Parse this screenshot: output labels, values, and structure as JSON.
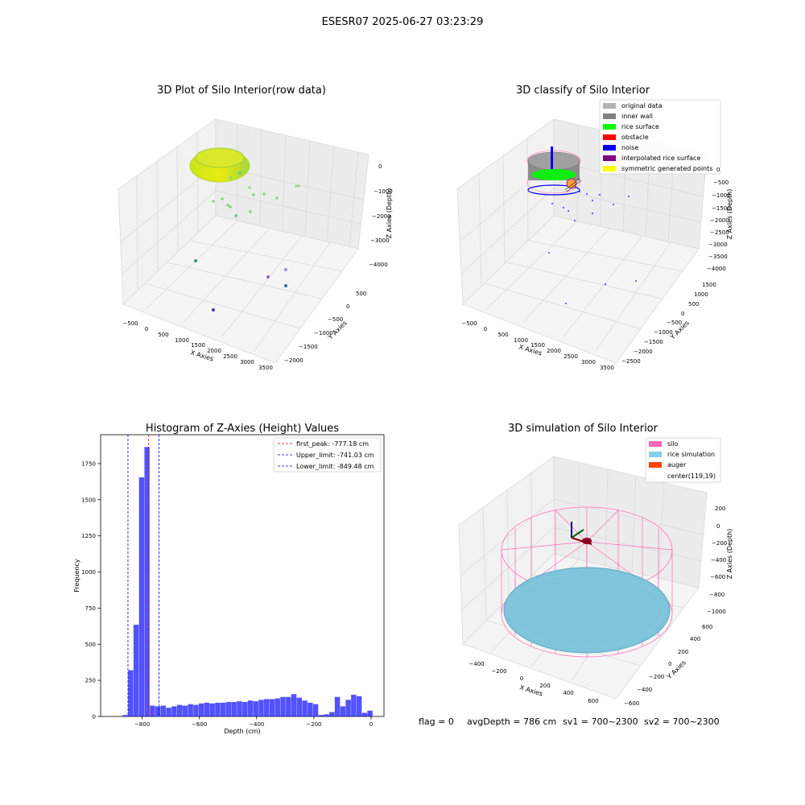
{
  "suptitle": "ESESR07 2025-06-27 03:23:29",
  "panels": {
    "raw": {
      "title": "3D Plot of Silo Interior(row data)",
      "xlabel": "X Axies",
      "ylabel": "Y Axies",
      "zlabel": "Z Axies (Depth)",
      "xticks": [
        "−500",
        "0",
        "500",
        "1000",
        "1500",
        "2000",
        "2500",
        "3000",
        "3500"
      ],
      "yticks": [
        "500",
        "0",
        "−500",
        "−1000",
        "−1500",
        "−2000"
      ],
      "zticks": [
        "0",
        "−1000",
        "−2000",
        "−3000",
        "−4000"
      ]
    },
    "classify": {
      "title": "3D classify of Silo Interior",
      "xlabel": "X Axies",
      "ylabel": "Y Axies",
      "zlabel": "Z Axies (Depth)",
      "xticks": [
        "−500",
        "0",
        "500",
        "1000",
        "1500",
        "2000",
        "2500",
        "3000",
        "3500"
      ],
      "yticks": [
        "1500",
        "1000",
        "500",
        "0",
        "−500",
        "−1000",
        "−1500",
        "−2000",
        "−2500"
      ],
      "zticks": [
        "0",
        "−500",
        "−1000",
        "−1500",
        "−2000",
        "−2500",
        "−3000",
        "−3500",
        "−4000"
      ],
      "legend": [
        {
          "label": "original data",
          "color": "#b3b3b3"
        },
        {
          "label": "inner wall",
          "color": "#808080"
        },
        {
          "label": "rice surface",
          "color": "#00ff00"
        },
        {
          "label": "obstacle",
          "color": "#ff0000"
        },
        {
          "label": "noise",
          "color": "#0000ff"
        },
        {
          "label": "interpolated rice surface",
          "color": "#800080"
        },
        {
          "label": "symmetric generated points",
          "color": "#ffff00"
        }
      ]
    },
    "simulation": {
      "title": "3D simulation of Silo Interior",
      "xlabel": "X Axies",
      "ylabel": "Y Axies",
      "zlabel": "Z Axies (Depth)",
      "xticks": [
        "−400",
        "−200",
        "0",
        "200",
        "400",
        "600"
      ],
      "yticks": [
        "600",
        "400",
        "200",
        "0",
        "−200",
        "−400",
        "−600"
      ],
      "zticks": [
        "200",
        "0",
        "−200",
        "−400",
        "−600",
        "−800",
        "−1000"
      ],
      "legend": [
        {
          "label": "silo",
          "color": "#ff69b4"
        },
        {
          "label": "rice simulation",
          "color": "#87ceeb"
        },
        {
          "label": "auger",
          "color": "#ff4500"
        },
        {
          "label": "center(119,19)",
          "color": ""
        }
      ]
    }
  },
  "status": {
    "flag": "flag = 0",
    "avg": "avgDepth = 786 cm",
    "sv1": "sv1 = 700~2300",
    "sv2": "sv2 = 700~2300"
  },
  "chart_data": {
    "type": "bar",
    "title": "Histogram of Z-Axies (Height) Values",
    "xlabel": "Depth (cm)",
    "ylabel": "Frequency",
    "xlim": [
      -945,
      45
    ],
    "ylim": [
      0,
      1950
    ],
    "xticks": [
      -800,
      -600,
      -400,
      -200,
      0
    ],
    "xtick_labels": [
      "−800",
      "−600",
      "−400",
      "−200",
      "0"
    ],
    "yticks": [
      0,
      250,
      500,
      750,
      1000,
      1250,
      1500,
      1750
    ],
    "bin_width": 19,
    "bin_starts": [
      -868,
      -849,
      -830,
      -811,
      -792,
      -773,
      -754,
      -735,
      -716,
      -697,
      -678,
      -659,
      -640,
      -621,
      -602,
      -583,
      -564,
      -545,
      -526,
      -507,
      -488,
      -469,
      -450,
      -431,
      -412,
      -393,
      -374,
      -355,
      -336,
      -317,
      -298,
      -279,
      -260,
      -241,
      -222,
      -203,
      -184,
      -165,
      -146,
      -127,
      -108,
      -89,
      -70,
      -51,
      -32,
      -13
    ],
    "values": [
      10,
      320,
      635,
      1655,
      1865,
      75,
      70,
      75,
      60,
      70,
      80,
      75,
      85,
      80,
      90,
      95,
      90,
      95,
      95,
      100,
      100,
      105,
      100,
      110,
      105,
      115,
      120,
      120,
      125,
      135,
      135,
      155,
      130,
      110,
      95,
      85,
      10,
      15,
      30,
      135,
      70,
      115,
      150,
      140,
      25,
      40
    ],
    "color": "#0000ff",
    "lines": [
      {
        "label": "first_peak: -777.18 cm",
        "value": -777.18,
        "color": "#ff0000"
      },
      {
        "label": "Upper_limit: -741.03 cm",
        "value": -741.03,
        "color": "#0000ff"
      },
      {
        "label": "Lower_limit: -849.48 cm",
        "value": -849.48,
        "color": "#0000ff"
      }
    ]
  }
}
